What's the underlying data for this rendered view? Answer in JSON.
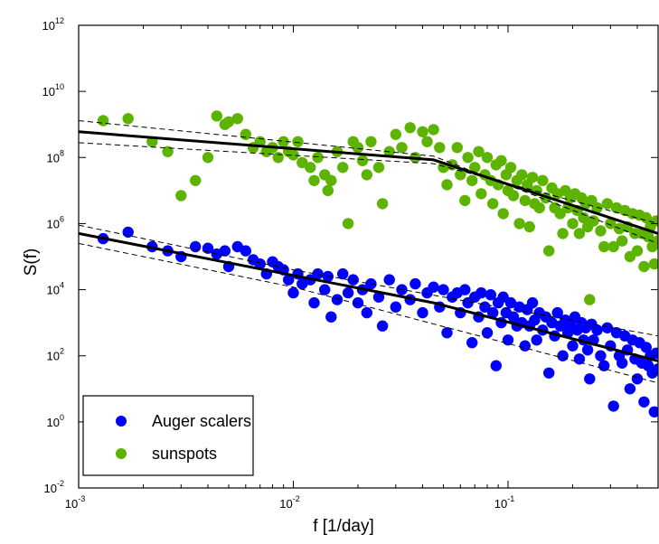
{
  "chart_data": {
    "type": "scatter",
    "xlabel": "f  [1/day]",
    "ylabel": "S(f)",
    "x_scale": "log",
    "y_scale": "log",
    "xlim": [
      0.001,
      0.5
    ],
    "ylim": [
      0.01,
      1000000000000.0
    ],
    "x_ticks": [
      {
        "base": "10",
        "exp": "-3",
        "value": 0.001
      },
      {
        "base": "10",
        "exp": "-2",
        "value": 0.01
      },
      {
        "base": "10",
        "exp": "-1",
        "value": 0.1
      }
    ],
    "y_ticks": [
      {
        "base": "10",
        "exp": "-2",
        "value": 0.01
      },
      {
        "base": "10",
        "exp": "0",
        "value": 1
      },
      {
        "base": "10",
        "exp": "2",
        "value": 100
      },
      {
        "base": "10",
        "exp": "4",
        "value": 10000
      },
      {
        "base": "10",
        "exp": "6",
        "value": 1000000
      },
      {
        "base": "10",
        "exp": "8",
        "value": 100000000
      },
      {
        "base": "10",
        "exp": "10",
        "value": 10000000000
      },
      {
        "base": "10",
        "exp": "12",
        "value": 1000000000000
      }
    ],
    "grid": false,
    "legend_position": "bottom-left",
    "series": [
      {
        "name": "Auger scalers",
        "color": "#0000ff",
        "points": [
          [
            0.0013,
            350000.0
          ],
          [
            0.0017,
            550000.0
          ],
          [
            0.0022,
            200000.0
          ],
          [
            0.0026,
            150000.0
          ],
          [
            0.003,
            100000.0
          ],
          [
            0.0035,
            200000.0
          ],
          [
            0.004,
            180000.0
          ],
          [
            0.0044,
            120000.0
          ],
          [
            0.0048,
            150000.0
          ],
          [
            0.005,
            50000.0
          ],
          [
            0.0055,
            200000.0
          ],
          [
            0.006,
            150000.0
          ],
          [
            0.0065,
            80000.0
          ],
          [
            0.007,
            60000.0
          ],
          [
            0.0075,
            30000.0
          ],
          [
            0.008,
            70000.0
          ],
          [
            0.0085,
            50000.0
          ],
          [
            0.009,
            40000.0
          ],
          [
            0.0095,
            20000.0
          ],
          [
            0.01,
            8000.0
          ],
          [
            0.0105,
            30000.0
          ],
          [
            0.011,
            15000.0
          ],
          [
            0.012,
            20000.0
          ],
          [
            0.0125,
            4000.0
          ],
          [
            0.013,
            30000.0
          ],
          [
            0.014,
            10000.0
          ],
          [
            0.0145,
            25000.0
          ],
          [
            0.015,
            1500.0
          ],
          [
            0.016,
            5000.0
          ],
          [
            0.017,
            30000.0
          ],
          [
            0.018,
            8000.0
          ],
          [
            0.019,
            20000.0
          ],
          [
            0.02,
            4000.0
          ],
          [
            0.021,
            10000.0
          ],
          [
            0.022,
            2000.0
          ],
          [
            0.023,
            15000.0
          ],
          [
            0.025,
            6000.0
          ],
          [
            0.026,
            800.0
          ],
          [
            0.028,
            20000.0
          ],
          [
            0.03,
            3000.0
          ],
          [
            0.032,
            10000.0
          ],
          [
            0.035,
            5000.0
          ],
          [
            0.037,
            15000.0
          ],
          [
            0.04,
            2000.0
          ],
          [
            0.042,
            8000.0
          ],
          [
            0.045,
            12000.0
          ],
          [
            0.048,
            3000.0
          ],
          [
            0.05,
            10000.0
          ],
          [
            0.052,
            500.0
          ],
          [
            0.055,
            6000.0
          ],
          [
            0.058,
            8000.0
          ],
          [
            0.06,
            2000.0
          ],
          [
            0.063,
            10000.0
          ],
          [
            0.065,
            4000.0
          ],
          [
            0.068,
            250.0
          ],
          [
            0.07,
            6000.0
          ],
          [
            0.073,
            1500.0
          ],
          [
            0.075,
            8000.0
          ],
          [
            0.078,
            3000.0
          ],
          [
            0.08,
            500.0
          ],
          [
            0.083,
            7000.0
          ],
          [
            0.085,
            2000.0
          ],
          [
            0.088,
            50.0
          ],
          [
            0.09,
            4000.0
          ],
          [
            0.093,
            1000.0
          ],
          [
            0.095,
            6000.0
          ],
          [
            0.098,
            2000.0
          ],
          [
            0.1,
            300.0
          ],
          [
            0.103,
            4000.0
          ],
          [
            0.106,
            1500.0
          ],
          [
            0.11,
            800.0
          ],
          [
            0.113,
            3000.0
          ],
          [
            0.116,
            1000.0
          ],
          [
            0.12,
            200.0
          ],
          [
            0.123,
            2500.0
          ],
          [
            0.126,
            800.0
          ],
          [
            0.13,
            4000.0
          ],
          [
            0.133,
            1200.0
          ],
          [
            0.136,
            300.0
          ],
          [
            0.14,
            2000.0
          ],
          [
            0.145,
            600.0
          ],
          [
            0.15,
            1500.0
          ],
          [
            0.155,
            30.0
          ],
          [
            0.16,
            1000.0
          ],
          [
            0.165,
            400.0
          ],
          [
            0.17,
            2000.0
          ],
          [
            0.175,
            800.0
          ],
          [
            0.18,
            100.0
          ],
          [
            0.185,
            1200.0
          ],
          [
            0.19,
            500.0
          ],
          [
            0.195,
            900.0
          ],
          [
            0.2,
            200.0
          ],
          [
            0.205,
            1500.0
          ],
          [
            0.21,
            600.0
          ],
          [
            0.215,
            80.0
          ],
          [
            0.22,
            1000.0
          ],
          [
            0.225,
            300.0
          ],
          [
            0.23,
            700.0
          ],
          [
            0.235,
            150.0
          ],
          [
            0.24,
            20.0
          ],
          [
            0.245,
            900.0
          ],
          [
            0.25,
            300.0
          ],
          [
            0.26,
            600.0
          ],
          [
            0.27,
            100.0
          ],
          [
            0.28,
            50.0
          ],
          [
            0.29,
            700.0
          ],
          [
            0.3,
            200.0
          ],
          [
            0.31,
            3.0
          ],
          [
            0.32,
            500.0
          ],
          [
            0.33,
            100.0
          ],
          [
            0.34,
            60.0
          ],
          [
            0.35,
            400.0
          ],
          [
            0.36,
            150.0
          ],
          [
            0.37,
            10.0
          ],
          [
            0.38,
            300.0
          ],
          [
            0.39,
            80.0
          ],
          [
            0.4,
            20.0
          ],
          [
            0.41,
            250.0
          ],
          [
            0.42,
            60.0
          ],
          [
            0.43,
            4.0
          ],
          [
            0.44,
            180.0
          ],
          [
            0.45,
            50.0
          ],
          [
            0.46,
            100.0
          ],
          [
            0.47,
            30.0
          ],
          [
            0.48,
            2.0
          ],
          [
            0.49,
            120.0
          ],
          [
            0.5,
            40.0
          ]
        ]
      },
      {
        "name": "sunspots",
        "color": "#5cb300",
        "points": [
          [
            0.0013,
            1300000000.0
          ],
          [
            0.0017,
            1500000000.0
          ],
          [
            0.0022,
            300000000.0
          ],
          [
            0.0026,
            150000000.0
          ],
          [
            0.003,
            7000000.0
          ],
          [
            0.0035,
            20000000.0
          ],
          [
            0.004,
            100000000.0
          ],
          [
            0.0044,
            1800000000.0
          ],
          [
            0.0048,
            1000000000.0
          ],
          [
            0.005,
            1200000000.0
          ],
          [
            0.0055,
            1500000000.0
          ],
          [
            0.006,
            500000000.0
          ],
          [
            0.0065,
            200000000.0
          ],
          [
            0.007,
            300000000.0
          ],
          [
            0.0075,
            150000000.0
          ],
          [
            0.008,
            200000000.0
          ],
          [
            0.0085,
            100000000.0
          ],
          [
            0.009,
            300000000.0
          ],
          [
            0.0095,
            150000000.0
          ],
          [
            0.01,
            120000000.0
          ],
          [
            0.0105,
            300000000.0
          ],
          [
            0.011,
            70000000.0
          ],
          [
            0.012,
            50000000.0
          ],
          [
            0.0125,
            20000000.0
          ],
          [
            0.013,
            100000000.0
          ],
          [
            0.014,
            30000000.0
          ],
          [
            0.0145,
            10000000.0
          ],
          [
            0.015,
            20000000.0
          ],
          [
            0.016,
            150000000.0
          ],
          [
            0.017,
            50000000.0
          ],
          [
            0.018,
            1000000.0
          ],
          [
            0.019,
            300000000.0
          ],
          [
            0.02,
            200000000.0
          ],
          [
            0.021,
            80000000.0
          ],
          [
            0.022,
            30000000.0
          ],
          [
            0.023,
            300000000.0
          ],
          [
            0.025,
            50000000.0
          ],
          [
            0.026,
            4000000.0
          ],
          [
            0.028,
            150000000.0
          ],
          [
            0.03,
            500000000.0
          ],
          [
            0.032,
            200000000.0
          ],
          [
            0.035,
            800000000.0
          ],
          [
            0.037,
            100000000.0
          ],
          [
            0.04,
            600000000.0
          ],
          [
            0.042,
            300000000.0
          ],
          [
            0.045,
            700000000.0
          ],
          [
            0.048,
            200000000.0
          ],
          [
            0.05,
            50000000.0
          ],
          [
            0.052,
            15000000.0
          ],
          [
            0.055,
            60000000.0
          ],
          [
            0.058,
            200000000.0
          ],
          [
            0.06,
            30000000.0
          ],
          [
            0.063,
            5000000.0
          ],
          [
            0.065,
            100000000.0
          ],
          [
            0.068,
            20000000.0
          ],
          [
            0.07,
            50000000.0
          ],
          [
            0.073,
            150000000.0
          ],
          [
            0.075,
            8000000.0
          ],
          [
            0.078,
            30000000.0
          ],
          [
            0.08,
            100000000.0
          ],
          [
            0.083,
            20000000.0
          ],
          [
            0.085,
            4000000.0
          ],
          [
            0.088,
            60000000.0
          ],
          [
            0.09,
            15000000.0
          ],
          [
            0.093,
            80000000.0
          ],
          [
            0.095,
            2000000.0
          ],
          [
            0.098,
            30000000.0
          ],
          [
            0.1,
            10000000.0
          ],
          [
            0.103,
            50000000.0
          ],
          [
            0.106,
            7000000.0
          ],
          [
            0.11,
            20000000.0
          ],
          [
            0.113,
            1000000.0
          ],
          [
            0.116,
            30000000.0
          ],
          [
            0.12,
            5000000.0
          ],
          [
            0.123,
            15000000.0
          ],
          [
            0.126,
            800000.0
          ],
          [
            0.13,
            25000000.0
          ],
          [
            0.133,
            4000000.0
          ],
          [
            0.136,
            10000000.0
          ],
          [
            0.14,
            3000000.0
          ],
          [
            0.145,
            20000000.0
          ],
          [
            0.15,
            6000000.0
          ],
          [
            0.155,
            150000.0
          ],
          [
            0.16,
            12000000.0
          ],
          [
            0.165,
            3000000.0
          ],
          [
            0.17,
            8000000.0
          ],
          [
            0.175,
            2000000.0
          ],
          [
            0.18,
            500000.0
          ],
          [
            0.185,
            10000000.0
          ],
          [
            0.19,
            3000000.0
          ],
          [
            0.195,
            6000000.0
          ],
          [
            0.2,
            1000000.0
          ],
          [
            0.205,
            8000000.0
          ],
          [
            0.21,
            2500000.0
          ],
          [
            0.215,
            500000.0
          ],
          [
            0.22,
            6000000.0
          ],
          [
            0.225,
            1500000.0
          ],
          [
            0.23,
            4000000.0
          ],
          [
            0.235,
            800000.0
          ],
          [
            0.24,
            5000.0
          ],
          [
            0.245,
            5000000.0
          ],
          [
            0.25,
            1200000.0
          ],
          [
            0.26,
            3000000.0
          ],
          [
            0.27,
            600000.0
          ],
          [
            0.28,
            200000.0
          ],
          [
            0.29,
            4000000.0
          ],
          [
            0.3,
            1000000.0
          ],
          [
            0.31,
            200000.0
          ],
          [
            0.32,
            3000000.0
          ],
          [
            0.33,
            700000.0
          ],
          [
            0.34,
            300000.0
          ],
          [
            0.35,
            2500000.0
          ],
          [
            0.36,
            800000.0
          ],
          [
            0.37,
            100000.0
          ],
          [
            0.38,
            2000000.0
          ],
          [
            0.39,
            500000.0
          ],
          [
            0.4,
            150000.0
          ],
          [
            0.41,
            1800000.0
          ],
          [
            0.42,
            500000.0
          ],
          [
            0.43,
            50000.0
          ],
          [
            0.44,
            1500000.0
          ],
          [
            0.45,
            400000.0
          ],
          [
            0.46,
            800000.0
          ],
          [
            0.47,
            200000.0
          ],
          [
            0.48,
            60000.0
          ],
          [
            0.49,
            1200000.0
          ],
          [
            0.5,
            300000.0
          ]
        ]
      }
    ],
    "fit_lines": [
      {
        "style": "solid",
        "points": [
          [
            0.001,
            600000000.0
          ],
          [
            0.045,
            85000000.0
          ],
          [
            0.5,
            500000.0
          ]
        ]
      },
      {
        "style": "dashed",
        "points": [
          [
            0.001,
            1300000000.0
          ],
          [
            0.045,
            110000000.0
          ],
          [
            0.5,
            250000.0
          ]
        ]
      },
      {
        "style": "dashed",
        "points": [
          [
            0.001,
            280000000.0
          ],
          [
            0.045,
            65000000.0
          ],
          [
            0.5,
            1000000.0
          ]
        ]
      },
      {
        "style": "solid",
        "points": [
          [
            0.001,
            500000.0
          ],
          [
            0.045,
            4000.0
          ],
          [
            0.5,
            70.0
          ]
        ]
      },
      {
        "style": "dashed",
        "points": [
          [
            0.001,
            900000.0
          ],
          [
            0.01,
            40000.0
          ],
          [
            0.5,
            400.0
          ]
        ]
      },
      {
        "style": "dashed",
        "points": [
          [
            0.001,
            250000.0
          ],
          [
            0.01,
            12000.0
          ],
          [
            0.5,
            15.0
          ]
        ]
      }
    ]
  }
}
